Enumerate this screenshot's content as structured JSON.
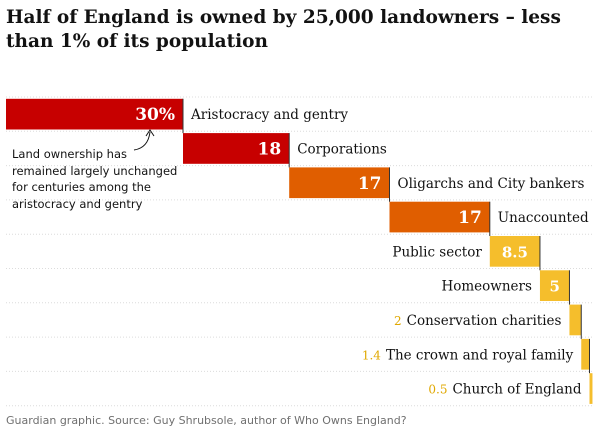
{
  "title": "Half of England is owned by 25,000 landowners – less than 1% of its population",
  "annotation": "Land ownership has remained largely unchanged for centuries among the aristocracy and gentry",
  "source": "Guardian graphic. Source: Guy Shrubsole, author of Who Owns England?",
  "colors": {
    "dark_red": "#c70000",
    "orange": "#e05e00",
    "yellow": "#f5be2c"
  },
  "chart_data": {
    "type": "bar",
    "subtype": "waterfall",
    "title": "Half of England is owned by 25,000 landowners – less than 1% of its population",
    "unit": "%",
    "categories": [
      "Aristocracy and gentry",
      "Corporations",
      "Oligarchs and City bankers",
      "Unaccounted",
      "Public sector",
      "Homeowners",
      "Conservation charities",
      "The crown and royal family",
      "Church of England"
    ],
    "values": [
      30,
      18,
      17,
      17,
      8.5,
      5,
      2,
      1.4,
      0.5
    ],
    "value_labels": [
      "30%",
      "18",
      "17",
      "17",
      "8.5",
      "5",
      "2",
      "1.4",
      "0.5"
    ],
    "colors": [
      "#c70000",
      "#c70000",
      "#e05e00",
      "#e05e00",
      "#f5be2c",
      "#f5be2c",
      "#f5be2c",
      "#f5be2c",
      "#f5be2c"
    ],
    "grid": true,
    "legend": "none"
  }
}
